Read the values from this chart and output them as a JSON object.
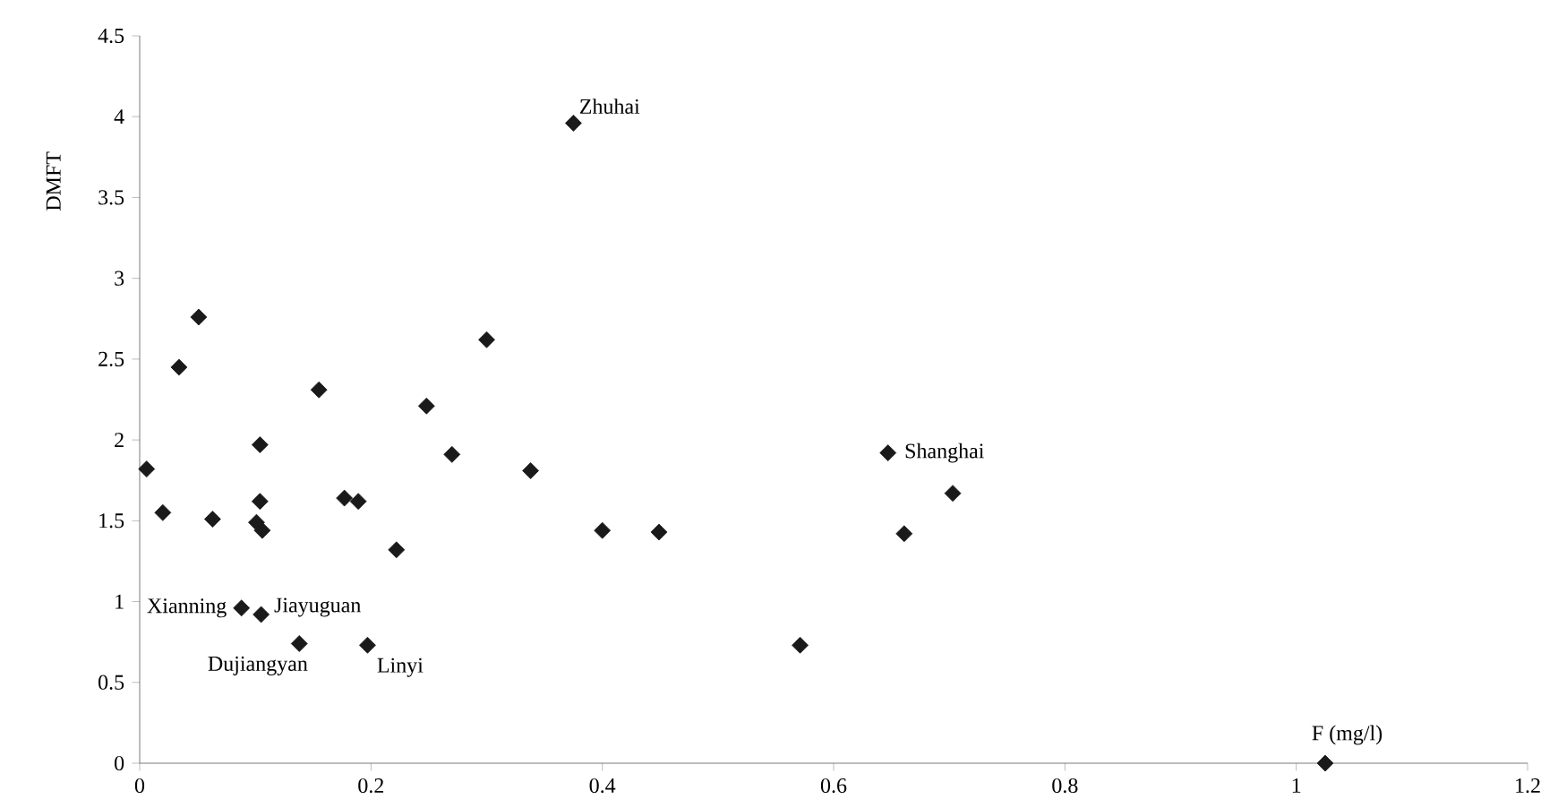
{
  "chart_data": {
    "type": "scatter",
    "xlabel": "F (mg/l)",
    "ylabel": "DMFT",
    "xlim": [
      0,
      1.2
    ],
    "ylim": [
      0,
      4.5
    ],
    "xticks": [
      0,
      0.2,
      0.4,
      0.6,
      0.8,
      1,
      1.2
    ],
    "yticks": [
      0,
      0.5,
      1,
      1.5,
      2,
      2.5,
      3,
      3.5,
      4,
      4.5
    ],
    "grid": false,
    "marker": "diamond",
    "series": [
      {
        "color": "#1a1a1a",
        "x": [
          0.006,
          0.02,
          0.034,
          0.051,
          0.063,
          0.104,
          0.104,
          0.101,
          0.106,
          0.088,
          0.105,
          0.138,
          0.155,
          0.177,
          0.189,
          0.197,
          0.222,
          0.248,
          0.27,
          0.3,
          0.338,
          0.375,
          0.4,
          0.449,
          0.571,
          0.647,
          0.661,
          0.703,
          1.025
        ],
        "values": [
          1.82,
          1.55,
          2.45,
          2.76,
          1.51,
          1.97,
          1.62,
          1.49,
          1.44,
          0.96,
          0.92,
          0.74,
          2.31,
          1.64,
          1.62,
          0.73,
          1.32,
          2.21,
          1.91,
          2.62,
          1.81,
          3.96,
          1.44,
          1.43,
          0.73,
          1.92,
          1.42,
          1.67,
          0
        ]
      }
    ],
    "annotations": [
      {
        "text": "Zhuhai",
        "x": 0.375,
        "y": 3.96
      },
      {
        "text": "Shanghai",
        "x": 0.647,
        "y": 1.92
      },
      {
        "text": "Xianning",
        "x": 0.088,
        "y": 0.96
      },
      {
        "text": "Jiayuguan",
        "x": 0.105,
        "y": 0.92
      },
      {
        "text": "Dujiangyan",
        "x": 0.138,
        "y": 0.74
      },
      {
        "text": "Linyi",
        "x": 0.197,
        "y": 0.73
      }
    ]
  }
}
